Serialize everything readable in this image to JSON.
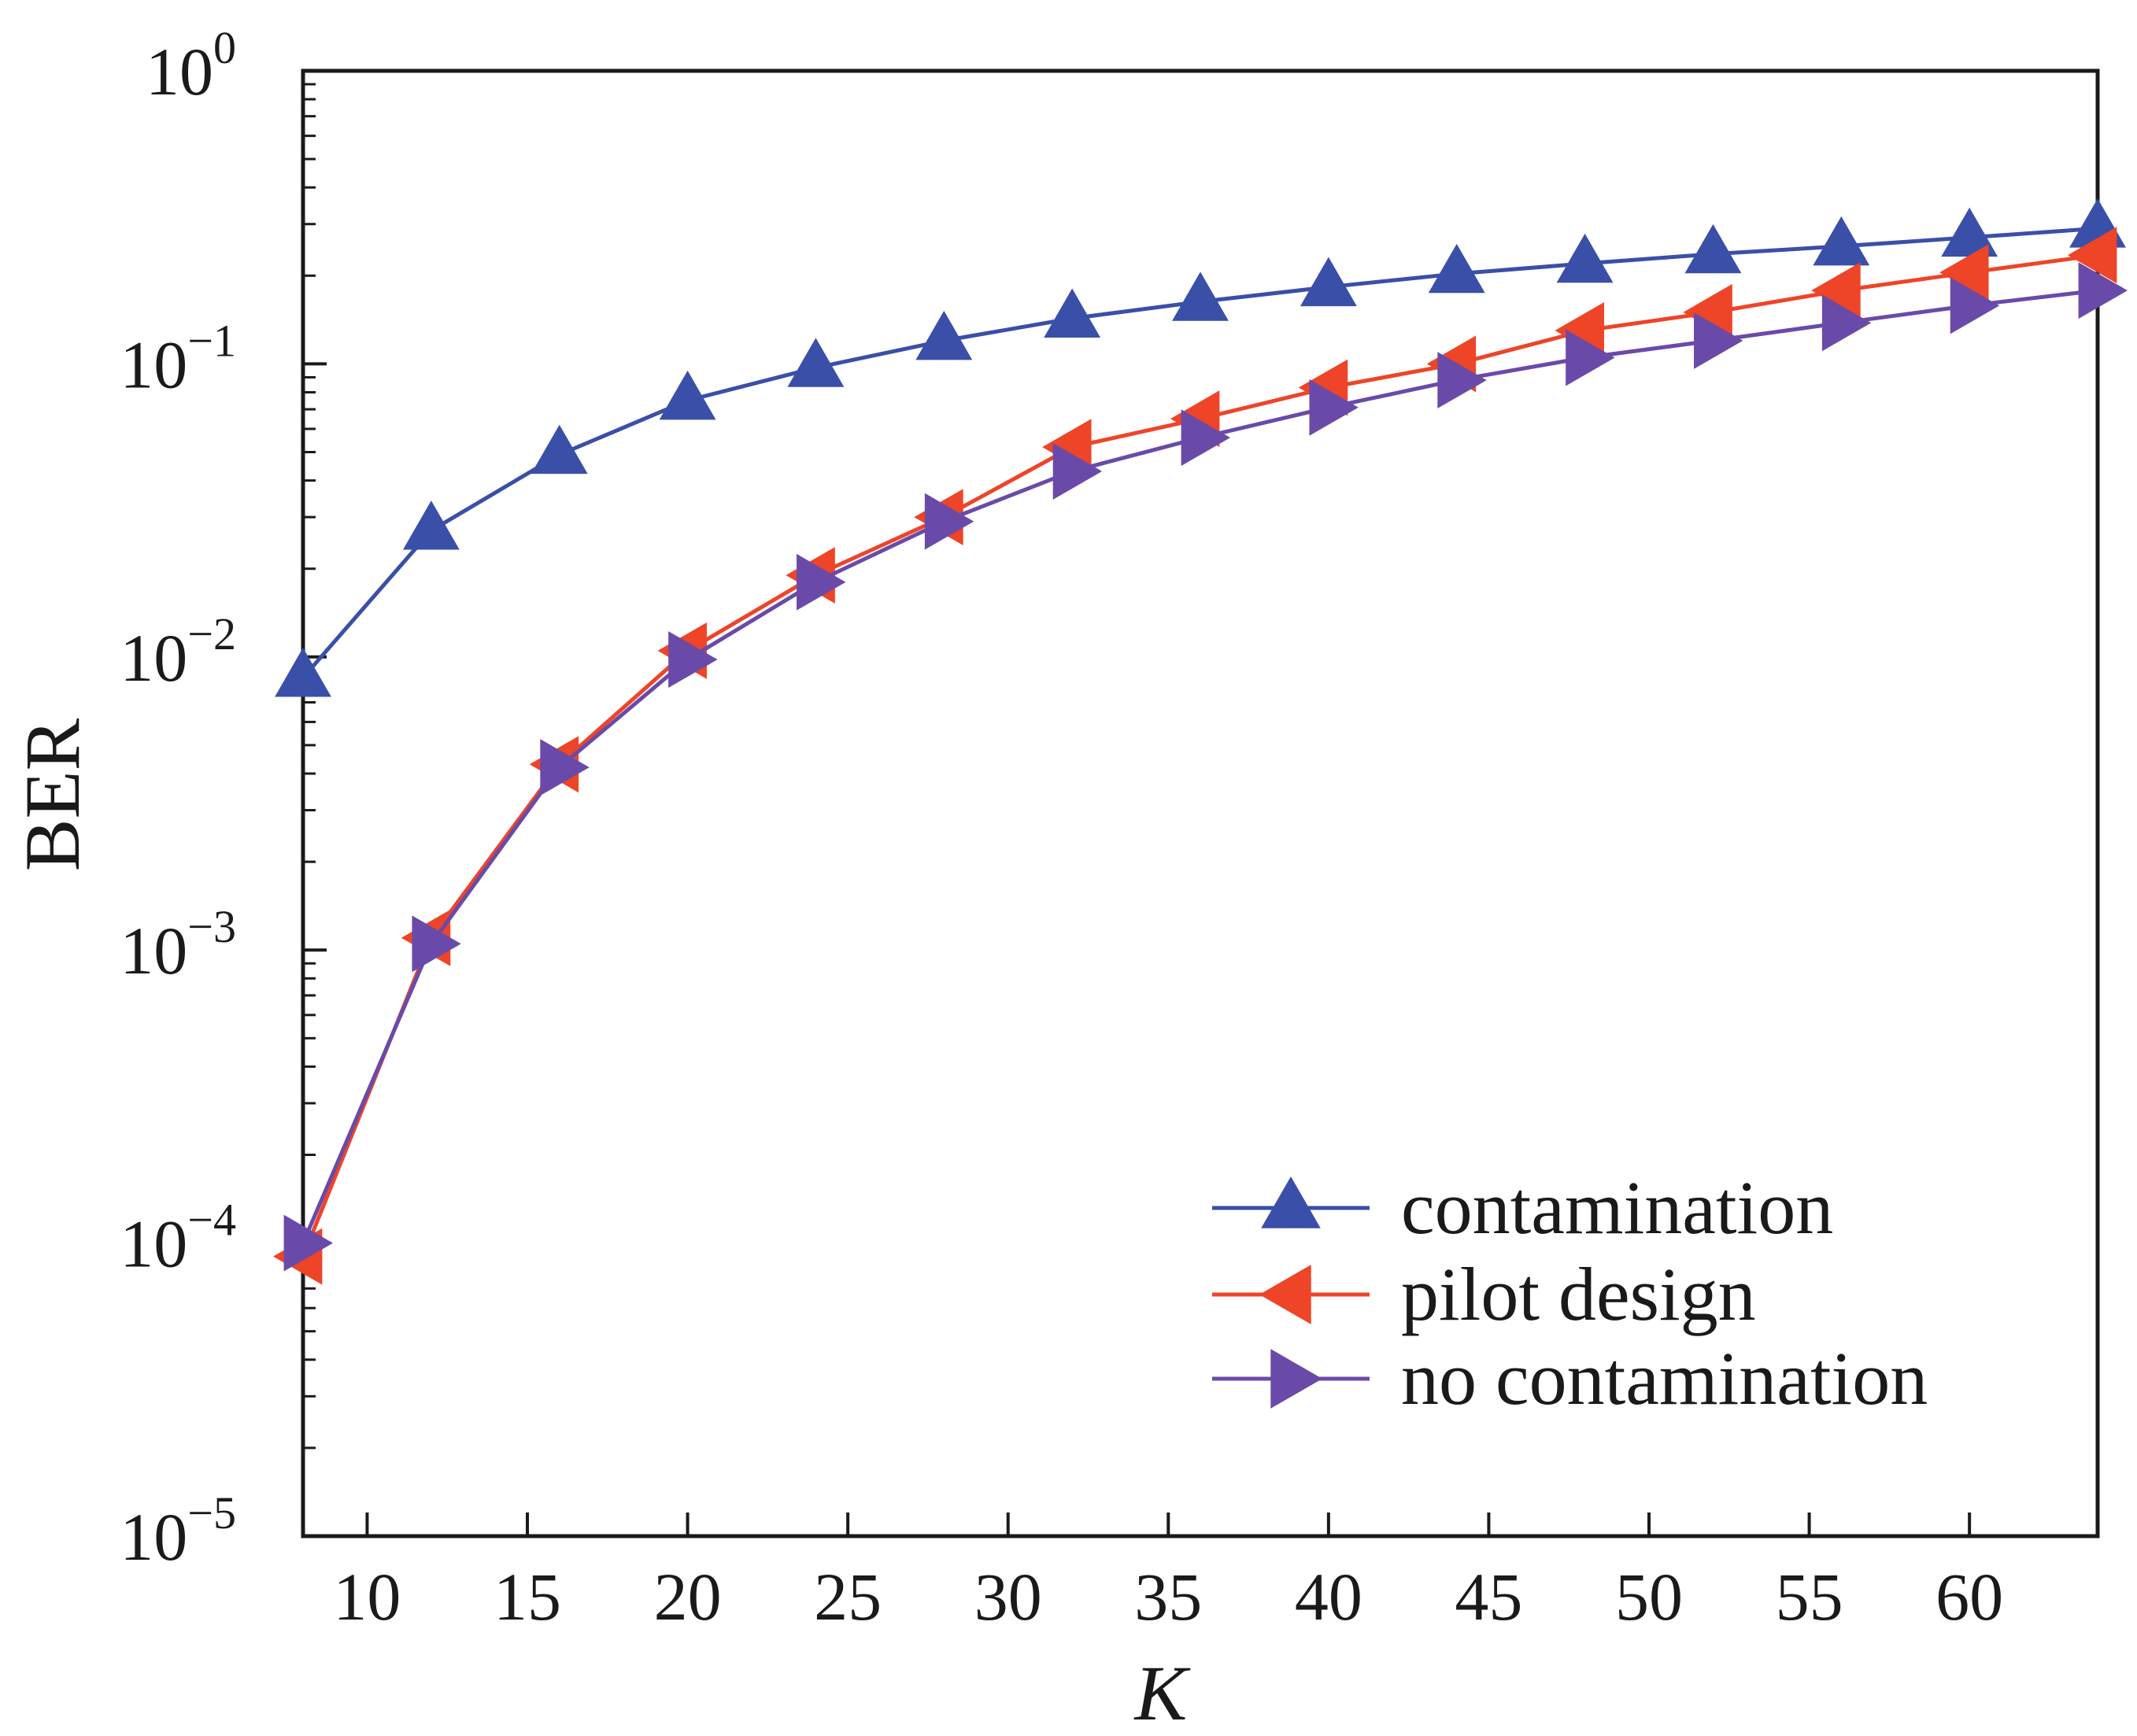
{
  "chart_data": {
    "type": "line",
    "xlabel": "K",
    "ylabel": "BER",
    "x": [
      8,
      12,
      16,
      20,
      24,
      28,
      32,
      36,
      40,
      44,
      48,
      52,
      56,
      60,
      64
    ],
    "xlim": [
      8,
      64
    ],
    "ylim": [
      1e-05,
      1
    ],
    "yscale": "log",
    "xticks": [
      10,
      15,
      20,
      25,
      30,
      35,
      40,
      45,
      50,
      55,
      60
    ],
    "yticks": [
      {
        "base": "10",
        "exp": "0",
        "value": 1
      },
      {
        "base": "10",
        "exp": "−1",
        "value": 0.1
      },
      {
        "base": "10",
        "exp": "−2",
        "value": 0.01
      },
      {
        "base": "10",
        "exp": "−3",
        "value": 0.001
      },
      {
        "base": "10",
        "exp": "−4",
        "value": 0.0001
      },
      {
        "base": "10",
        "exp": "−5",
        "value": 1e-05
      }
    ],
    "legend_position": "lower-right",
    "series": [
      {
        "name": "contamination",
        "color": "#3a4fa8",
        "marker": "triangle-up",
        "values": [
          0.0085,
          0.027,
          0.049,
          0.075,
          0.097,
          0.12,
          0.143,
          0.163,
          0.183,
          0.203,
          0.22,
          0.237,
          0.252,
          0.27,
          0.29
        ]
      },
      {
        "name": "pilot design",
        "color": "#ee4428",
        "marker": "triangle-left",
        "values": [
          9e-05,
          0.0011,
          0.0043,
          0.0105,
          0.019,
          0.03,
          0.052,
          0.065,
          0.083,
          0.1,
          0.13,
          0.15,
          0.178,
          0.205,
          0.235
        ]
      },
      {
        "name": "no contamination",
        "color": "#6a4aa8",
        "marker": "triangle-right",
        "values": [
          0.0001,
          0.00105,
          0.0042,
          0.0098,
          0.018,
          0.029,
          0.043,
          0.056,
          0.071,
          0.088,
          0.105,
          0.12,
          0.138,
          0.158,
          0.178
        ]
      }
    ]
  }
}
